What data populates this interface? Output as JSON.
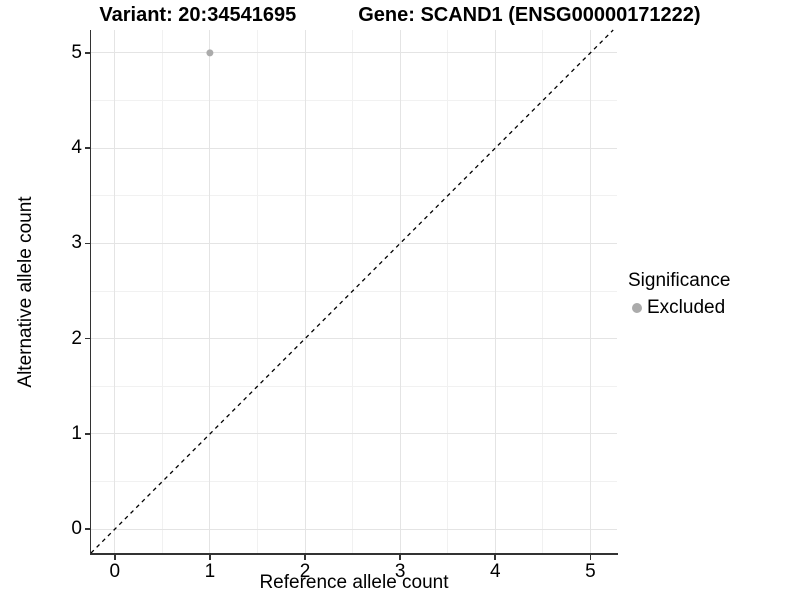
{
  "titles": {
    "left": "Variant: 20:34541695",
    "right": "Gene: SCAND1 (ENSG00000171222)"
  },
  "chart_data": {
    "type": "scatter",
    "xlabel": "Reference allele count",
    "ylabel": "Alternative allele count",
    "xticks": [
      0,
      1,
      2,
      3,
      4,
      5
    ],
    "yticks": [
      0,
      1,
      2,
      3,
      4,
      5
    ],
    "xlim": [
      -0.25,
      5.28
    ],
    "ylim": [
      -0.25,
      5.24
    ],
    "grid": "major+minor",
    "minor_step": 0.5,
    "points": [
      {
        "x": 1,
        "y": 5,
        "significance": "Excluded"
      }
    ],
    "reference_line": {
      "type": "identity",
      "slope": 1,
      "intercept": 0,
      "style": "dashed"
    },
    "legend": {
      "title": "Significance",
      "position": "right",
      "items": [
        {
          "label": "Excluded",
          "color": "#ababab"
        }
      ]
    },
    "colors": {
      "point": "#ababab",
      "grid_major": "#e4e4e4",
      "grid_minor": "#f1f1f1",
      "axis": "#333333",
      "line": "#000000",
      "text": "#000000"
    }
  }
}
